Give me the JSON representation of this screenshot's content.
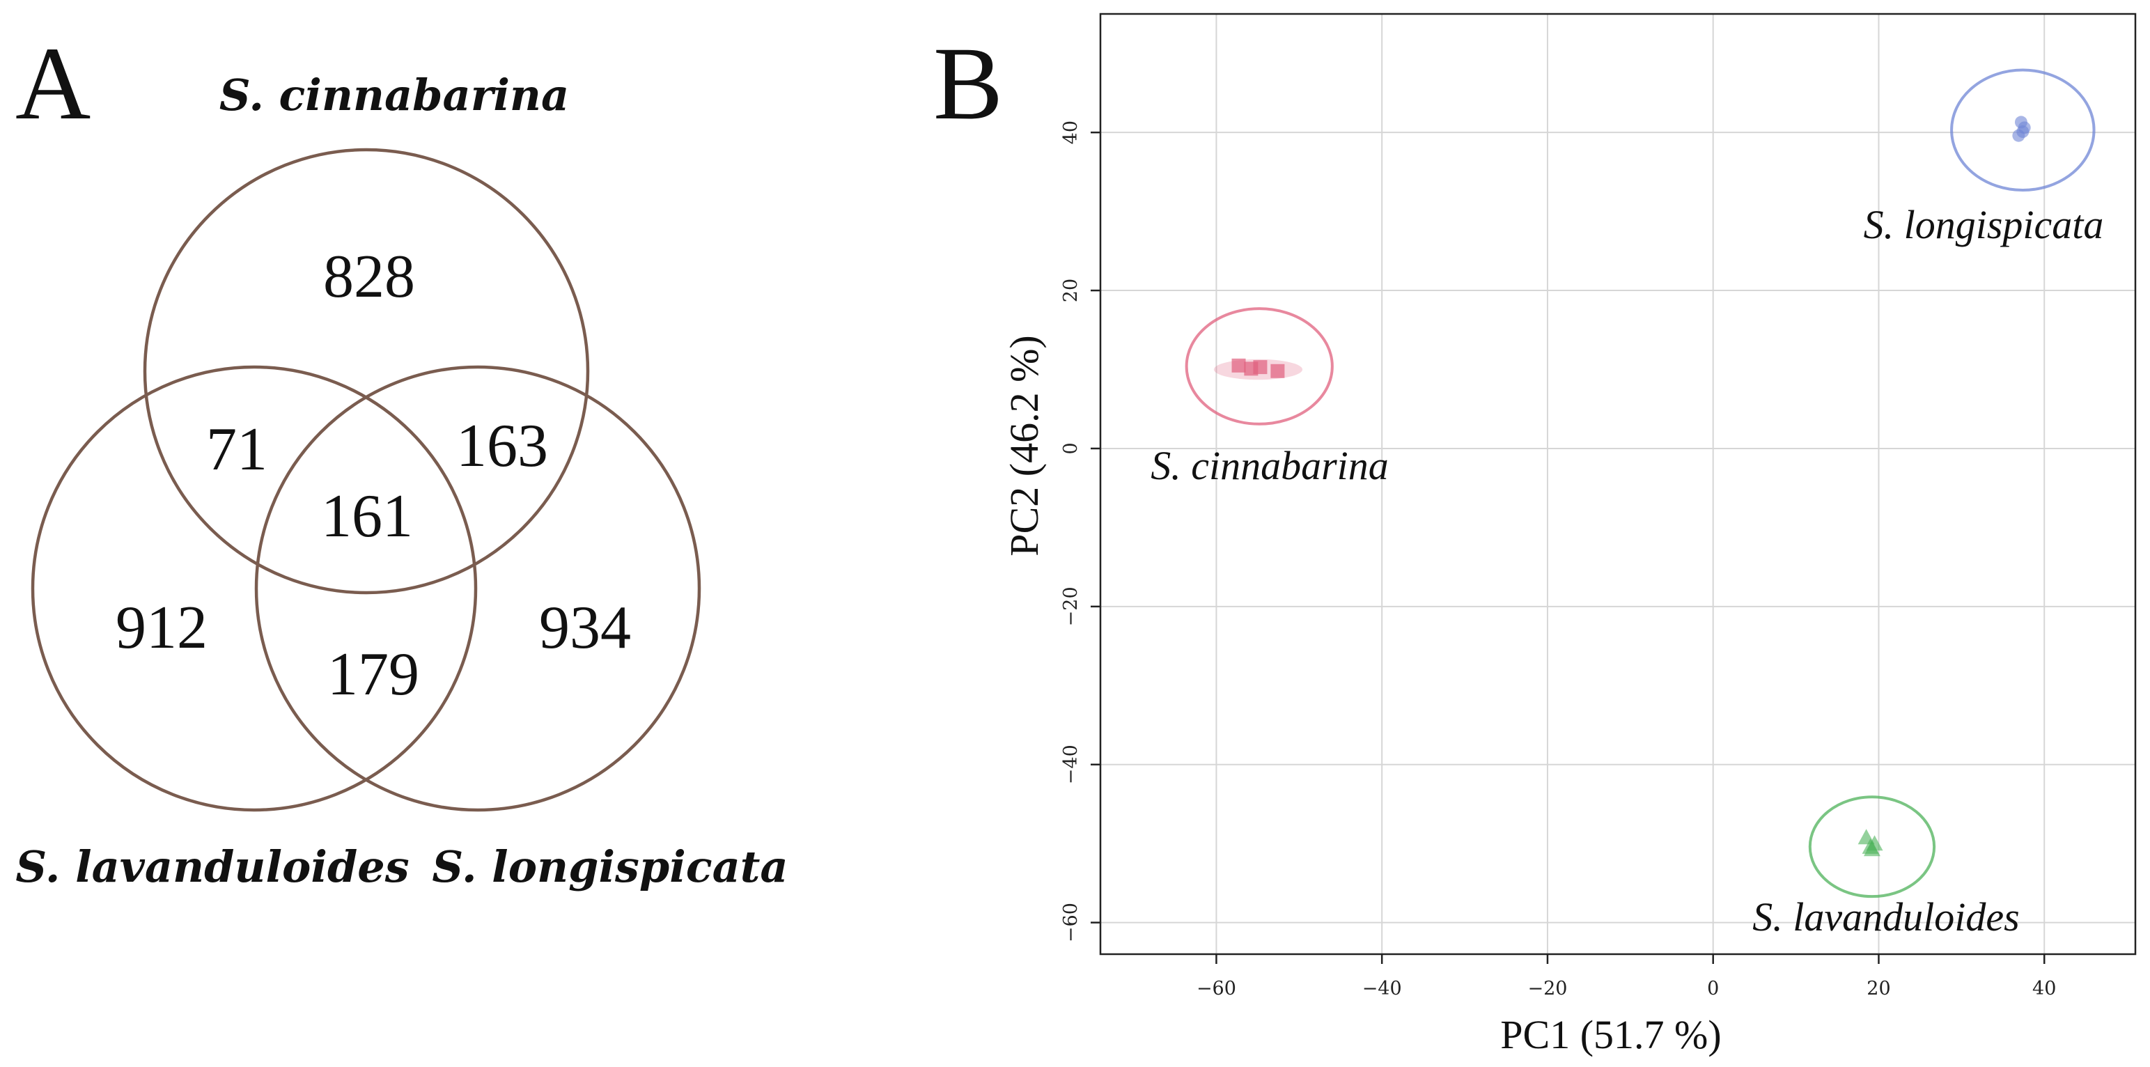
{
  "chart_data": [
    {
      "type": "venn",
      "panel_label": "A",
      "sets": [
        "S. cinnabarina",
        "S. lavanduloides",
        "S. longispicata"
      ],
      "regions": {
        "cinnabarina_only": 828,
        "cinnabarina_lavanduloides": 71,
        "cinnabarina_longispicata": 163,
        "all_three": 161,
        "lavanduloides_only": 912,
        "lavanduloides_longispicata": 179,
        "longispicata_only": 934
      },
      "circle_color": "#7a5c4f"
    },
    {
      "type": "scatter",
      "panel_label": "B",
      "xlabel": "PC1 (51.7 %)",
      "ylabel": "PC2 (46.2 %)",
      "xlim": [
        -74,
        51
      ],
      "ylim": [
        -64,
        55
      ],
      "xticks": [
        -60,
        -40,
        -20,
        0,
        20,
        40
      ],
      "yticks": [
        -60,
        -40,
        -20,
        0,
        20,
        40
      ],
      "grid": true,
      "series": [
        {
          "name": "S. longispicata",
          "color": "#6f86d6",
          "marker": "circle",
          "points": [
            [
              37.2,
              41.3
            ],
            [
              37.6,
              40.6
            ],
            [
              36.9,
              39.6
            ],
            [
              37.4,
              40.1
            ]
          ],
          "ellipse": {
            "cx": 37.4,
            "cy": 40.3,
            "rx": 8.6,
            "ry": 7.6
          }
        },
        {
          "name": "S. cinnabarina",
          "color": "#e0607e",
          "marker": "square",
          "points": [
            [
              -57.3,
              10.5
            ],
            [
              -55.8,
              10.1
            ],
            [
              -52.6,
              9.8
            ],
            [
              -54.7,
              10.3
            ]
          ],
          "ellipse": {
            "cx": -54.8,
            "cy": 10.4,
            "rx": 8.8,
            "ry": 7.3
          }
        },
        {
          "name": "S. lavanduloides",
          "color": "#4db25a",
          "marker": "triangle",
          "points": [
            [
              18.5,
              -49.3
            ],
            [
              19.0,
              -50.5
            ],
            [
              19.5,
              -50.1
            ],
            [
              19.2,
              -50.8
            ]
          ],
          "ellipse": {
            "cx": 19.2,
            "cy": -50.4,
            "rx": 7.5,
            "ry": 6.3
          }
        }
      ]
    }
  ]
}
